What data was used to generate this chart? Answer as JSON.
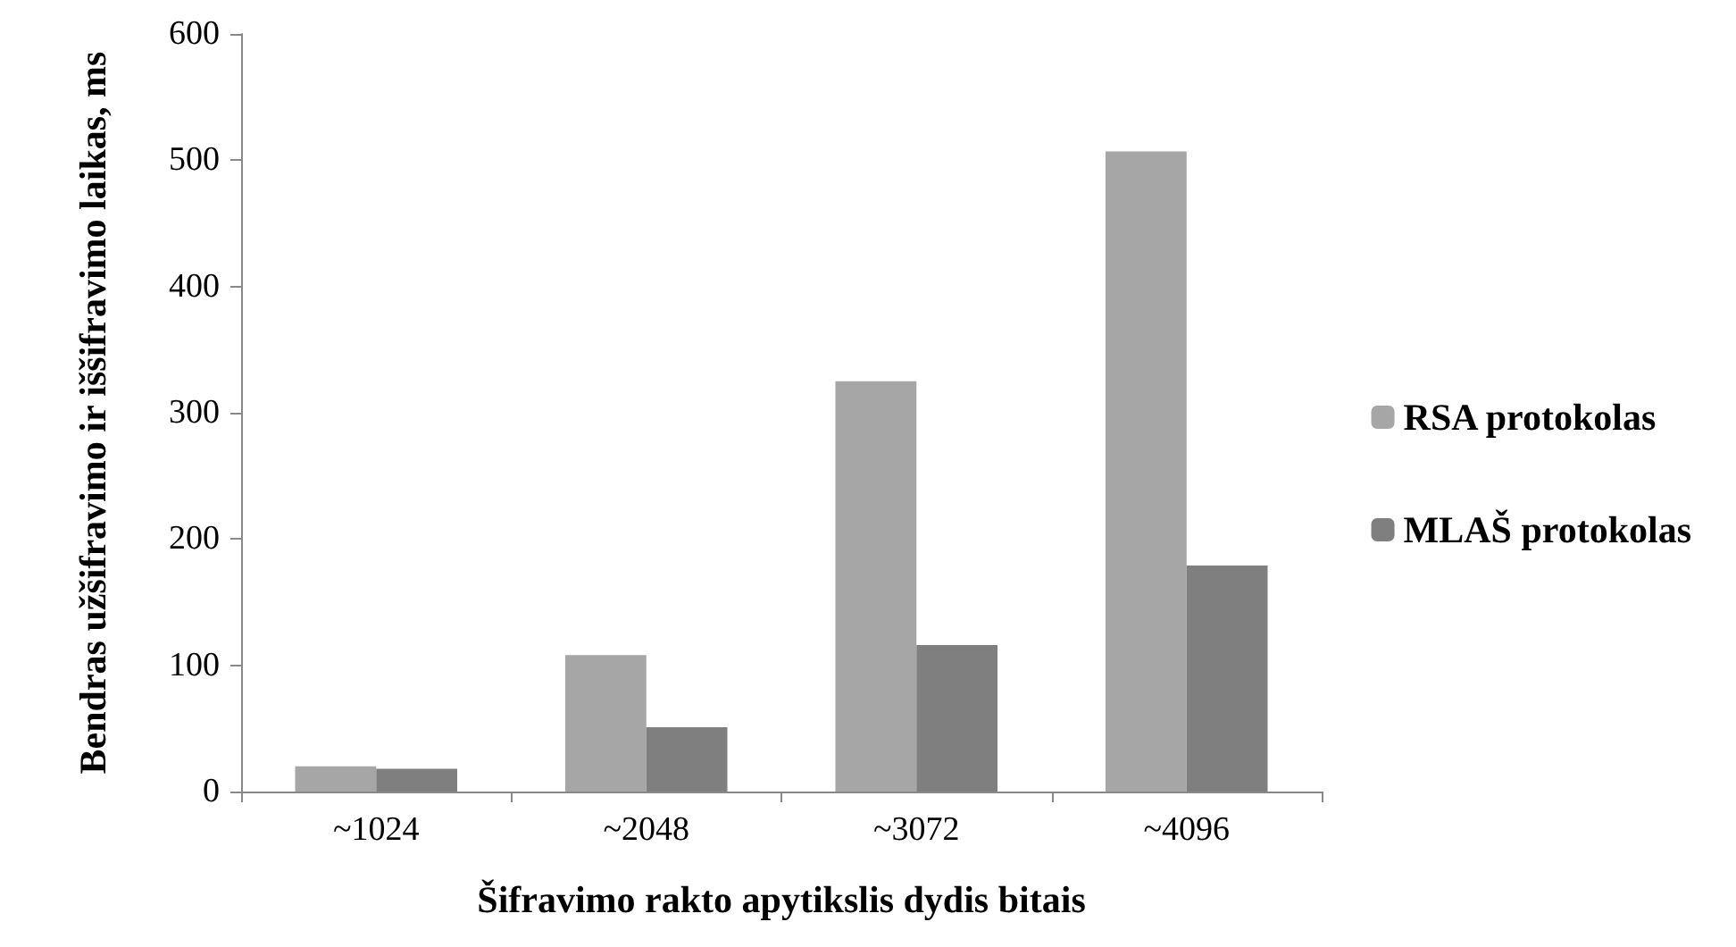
{
  "chart_data": {
    "type": "bar",
    "xlabel": "Šifravimo rakto apytikslis dydis bitais",
    "ylabel": "Bendras užšifravimo ir iššifravimo laikas, ms",
    "categories": [
      "~1024",
      "~2048",
      "~3072",
      "~4096"
    ],
    "series": [
      {
        "name": "RSA protokolas",
        "color": "#a6a6a7",
        "values": [
          20,
          108,
          325,
          507
        ]
      },
      {
        "name": "MLAŠ protokolas",
        "color": "#7f7f80",
        "values": [
          18,
          51,
          116,
          179
        ]
      }
    ],
    "ylim": [
      0,
      600
    ],
    "yticks": [
      0,
      100,
      200,
      300,
      400,
      500,
      600
    ],
    "grid": false,
    "legend": "right"
  }
}
